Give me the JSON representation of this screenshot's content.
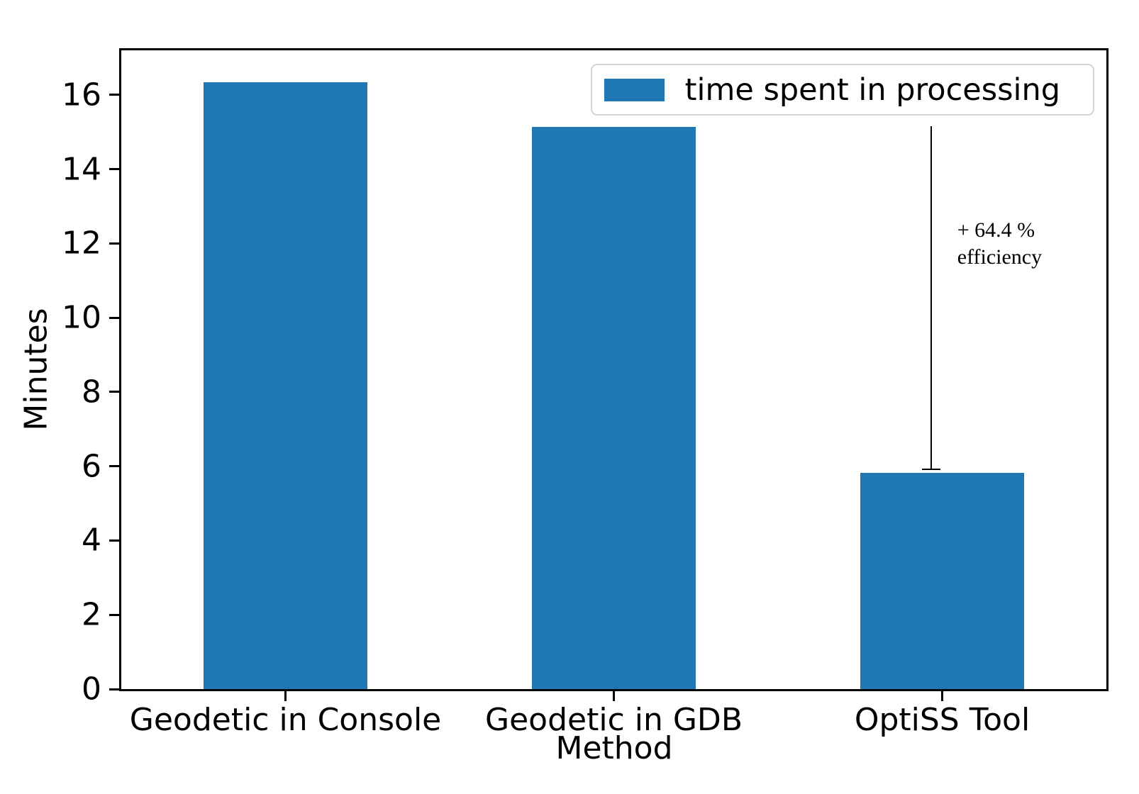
{
  "chart_data": {
    "type": "bar",
    "title": "",
    "categories": [
      "Geodetic in Console",
      "Geodetic in GDB",
      "OptiSS Tool"
    ],
    "values": [
      16.35,
      15.13,
      5.82
    ],
    "xlabel": "Method",
    "ylabel": "Minutes",
    "ylim": [
      0,
      17.2
    ],
    "yticks": [
      0,
      2,
      4,
      6,
      8,
      10,
      12,
      14,
      16
    ],
    "bar_color": "#1f77b4",
    "grid": false,
    "legend": {
      "label": "time spent in processing",
      "position": "upper right",
      "swatch_color": "#1f77b4"
    },
    "annotation": {
      "text_lines": [
        "+ 64.4 %",
        "efficiency"
      ],
      "points_to": "OptiSS Tool",
      "line_x_fraction": 0.822,
      "line_top_value": 15.15,
      "line_bottom_value": 5.92
    }
  }
}
